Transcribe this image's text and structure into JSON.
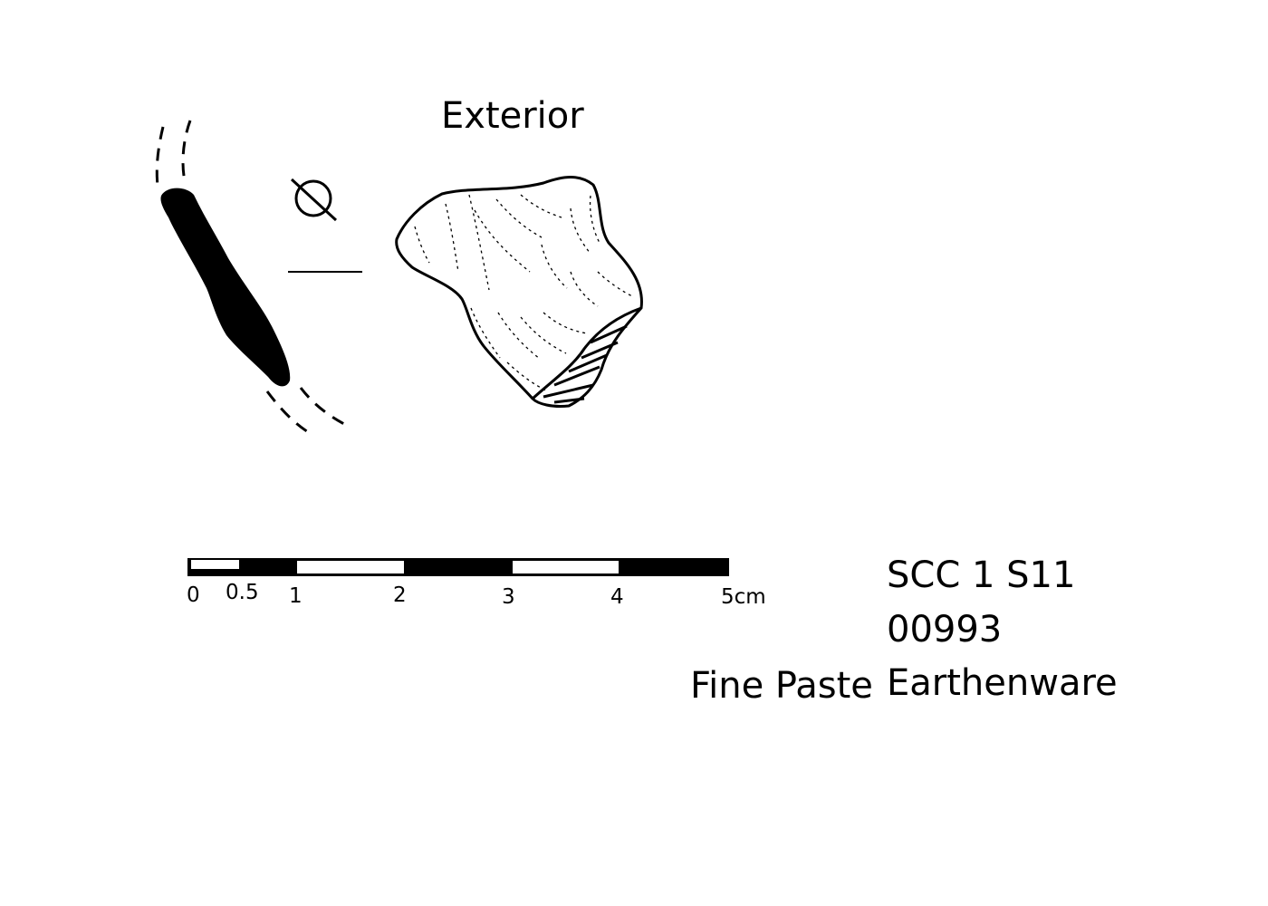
{
  "view_label": "Exterior",
  "scale_bar": {
    "ticks": [
      "0",
      "0.5",
      "1",
      "2",
      "3",
      "4",
      "5cm"
    ]
  },
  "catalog": {
    "site": "SCC 1 S11",
    "number": "00993",
    "fabric": "Fine Paste",
    "ware": "Earthenware"
  },
  "colors": {
    "ink": "#000000",
    "paper": "#ffffff"
  }
}
